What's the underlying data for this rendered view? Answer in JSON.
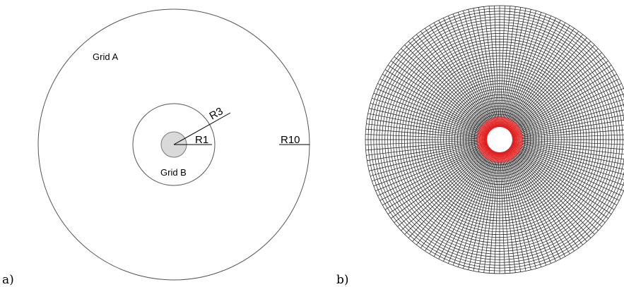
{
  "panel_a": {
    "panel_label": "a)",
    "grid_a_label": "Grid A",
    "grid_b_label": "Grid B",
    "r1_label": "R1",
    "r3_label": "R3",
    "r10_label": "R10",
    "colors": {
      "stroke": "#555555",
      "inner_fill": "#d9d9d9"
    }
  },
  "panel_b": {
    "panel_label": "b)",
    "outer_radial_lines": 160,
    "outer_rings": 40,
    "inner_radial_lines": 160,
    "inner_rings": 8,
    "colors": {
      "grid": "#1a1a1a",
      "inner_grid": "#e02020",
      "hole": "#ffffff"
    }
  }
}
